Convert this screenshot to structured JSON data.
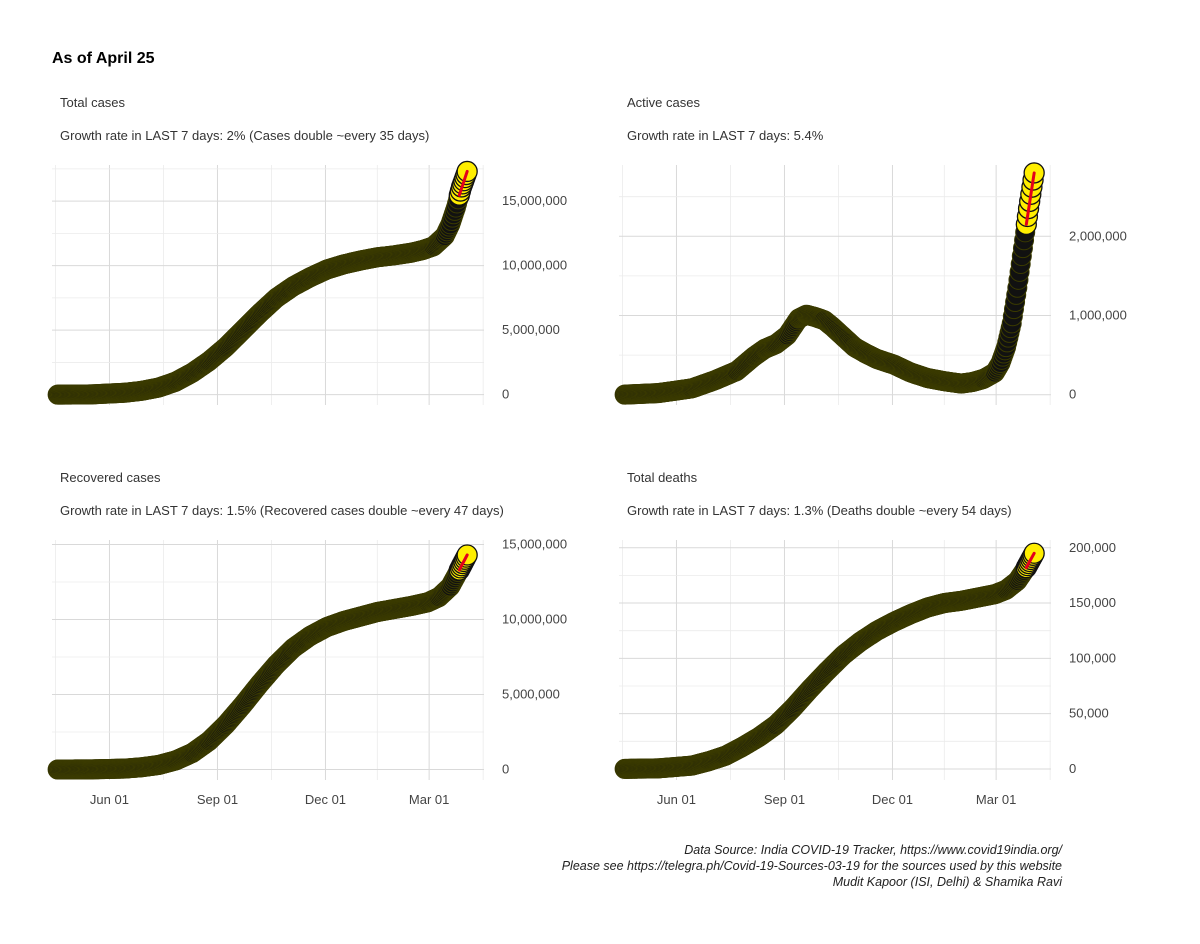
{
  "page": {
    "title": "As of April 25"
  },
  "caption": {
    "line1": "Data Source: India COVID-19 Tracker, https://www.covid19india.org/",
    "line2": "Please see https://telegra.ph/Covid-19-Sources-03-19 for the sources used by this website",
    "line3": "Mudit Kapoor (ISI, Delhi) & Shamika Ravi"
  },
  "colors": {
    "marker_recent": "#ffee00",
    "marker_older": "#111111",
    "trend_line": "#e4001b",
    "grid": "#d9d9d9"
  },
  "chart_data": [
    {
      "type": "scatter",
      "title": "Total cases",
      "subtitle": "Growth rate in LAST 7 days: 2% (Cases double ~every 35 days)",
      "x_tick_labels": [
        "Jun 01",
        "Sep 01",
        "Dec 01",
        "Mar 01"
      ],
      "y_ticks": [
        0,
        5000000,
        10000000,
        15000000
      ],
      "y_tick_labels": [
        "0",
        "5,000,000",
        "10,000,000",
        "15,000,000"
      ],
      "ylim": [
        -800000,
        17800000
      ],
      "curve": [
        [
          0,
          1000
        ],
        [
          30,
          20000
        ],
        [
          60,
          150000
        ],
        [
          75,
          300000
        ],
        [
          90,
          550000
        ],
        [
          105,
          1000000
        ],
        [
          120,
          1700000
        ],
        [
          135,
          2600000
        ],
        [
          150,
          3700000
        ],
        [
          165,
          5000000
        ],
        [
          180,
          6300000
        ],
        [
          195,
          7500000
        ],
        [
          210,
          8400000
        ],
        [
          225,
          9100000
        ],
        [
          240,
          9700000
        ],
        [
          255,
          10100000
        ],
        [
          270,
          10400000
        ],
        [
          285,
          10650000
        ],
        [
          300,
          10800000
        ],
        [
          315,
          11000000
        ],
        [
          325,
          11200000
        ],
        [
          335,
          11500000
        ],
        [
          345,
          12300000
        ],
        [
          350,
          13200000
        ],
        [
          355,
          14500000
        ],
        [
          360,
          16100000
        ],
        [
          365,
          17300000
        ]
      ]
    },
    {
      "type": "scatter",
      "title": "Active cases",
      "subtitle": "Growth rate in LAST 7 days: 5.4%",
      "x_tick_labels": [
        "Jun 01",
        "Sep 01",
        "Dec 01",
        "Mar 01"
      ],
      "y_ticks": [
        0,
        1000000,
        2000000
      ],
      "y_tick_labels": [
        "0",
        "1,000,000",
        "2,000,000"
      ],
      "ylim": [
        -130000,
        2900000
      ],
      "curve": [
        [
          0,
          1000
        ],
        [
          30,
          20000
        ],
        [
          60,
          80000
        ],
        [
          80,
          180000
        ],
        [
          100,
          300000
        ],
        [
          115,
          480000
        ],
        [
          125,
          580000
        ],
        [
          135,
          640000
        ],
        [
          145,
          750000
        ],
        [
          155,
          960000
        ],
        [
          162,
          1010000
        ],
        [
          170,
          980000
        ],
        [
          178,
          940000
        ],
        [
          185,
          860000
        ],
        [
          195,
          730000
        ],
        [
          205,
          600000
        ],
        [
          215,
          520000
        ],
        [
          225,
          450000
        ],
        [
          240,
          380000
        ],
        [
          255,
          280000
        ],
        [
          270,
          210000
        ],
        [
          285,
          170000
        ],
        [
          300,
          140000
        ],
        [
          310,
          160000
        ],
        [
          320,
          200000
        ],
        [
          330,
          280000
        ],
        [
          335,
          400000
        ],
        [
          340,
          600000
        ],
        [
          345,
          900000
        ],
        [
          350,
          1350000
        ],
        [
          355,
          1850000
        ],
        [
          360,
          2350000
        ],
        [
          365,
          2800000
        ]
      ]
    },
    {
      "type": "scatter",
      "title": "Recovered cases",
      "subtitle": "Growth rate in LAST 7 days: 1.5% (Recovered cases double ~every 47 days)",
      "x_tick_labels": [
        "Jun 01",
        "Sep 01",
        "Dec 01",
        "Mar 01"
      ],
      "y_ticks": [
        0,
        5000000,
        10000000,
        15000000
      ],
      "y_tick_labels": [
        "0",
        "5,000,000",
        "10,000,000",
        "15,000,000"
      ],
      "ylim": [
        -700000,
        15300000
      ],
      "curve": [
        [
          0,
          500
        ],
        [
          30,
          8000
        ],
        [
          60,
          60000
        ],
        [
          75,
          150000
        ],
        [
          90,
          300000
        ],
        [
          105,
          600000
        ],
        [
          120,
          1100000
        ],
        [
          135,
          1900000
        ],
        [
          150,
          3000000
        ],
        [
          165,
          4300000
        ],
        [
          180,
          5700000
        ],
        [
          195,
          7000000
        ],
        [
          210,
          8100000
        ],
        [
          225,
          8900000
        ],
        [
          240,
          9500000
        ],
        [
          255,
          9900000
        ],
        [
          270,
          10200000
        ],
        [
          285,
          10500000
        ],
        [
          300,
          10700000
        ],
        [
          315,
          10900000
        ],
        [
          330,
          11150000
        ],
        [
          340,
          11500000
        ],
        [
          350,
          12200000
        ],
        [
          358,
          13300000
        ],
        [
          365,
          14300000
        ]
      ]
    },
    {
      "type": "scatter",
      "title": "Total deaths",
      "subtitle": "Growth rate in LAST 7 days: 1.3% (Deaths double ~every 54 days)",
      "x_tick_labels": [
        "Jun 01",
        "Sep 01",
        "Dec 01",
        "Mar 01"
      ],
      "y_ticks": [
        0,
        50000,
        100000,
        150000,
        200000
      ],
      "y_tick_labels": [
        "0",
        "50,000",
        "100,000",
        "150,000",
        "200,000"
      ],
      "ylim": [
        -10000,
        207000
      ],
      "curve": [
        [
          0,
          50
        ],
        [
          30,
          500
        ],
        [
          60,
          3000
        ],
        [
          75,
          7000
        ],
        [
          90,
          12000
        ],
        [
          105,
          20000
        ],
        [
          120,
          29000
        ],
        [
          135,
          40000
        ],
        [
          150,
          55000
        ],
        [
          165,
          72000
        ],
        [
          180,
          88000
        ],
        [
          195,
          103000
        ],
        [
          210,
          115000
        ],
        [
          225,
          125000
        ],
        [
          240,
          133000
        ],
        [
          255,
          140000
        ],
        [
          270,
          146000
        ],
        [
          285,
          150000
        ],
        [
          300,
          152000
        ],
        [
          315,
          155000
        ],
        [
          330,
          158000
        ],
        [
          340,
          162000
        ],
        [
          350,
          170000
        ],
        [
          358,
          182000
        ],
        [
          365,
          195000
        ]
      ]
    }
  ]
}
